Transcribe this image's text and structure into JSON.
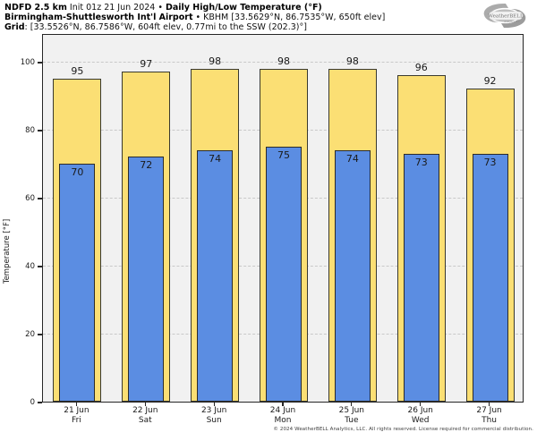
{
  "header": {
    "line1_b1": "NDFD 2.5 km",
    "line1_r1": " Init 01z 21 Jun 2024 • ",
    "line1_b2": "Daily High/Low Temperature (°F)",
    "line2_b1": "Birmingham-Shuttlesworth Int'l Airport",
    "line2_r1": " • KBHM [33.5629°N, 86.7535°W, 650ft elev]",
    "line3_b1": "Grid",
    "line3_r1": ": [33.5526°N, 86.7586°W, 604ft elev, 0.77mi to the SSW (202.3)°]"
  },
  "logo": {
    "brand": "WeatherBELL",
    "sub": "Analytics LLC"
  },
  "chart_data": {
    "type": "bar",
    "title": "Daily High/Low Temperature (°F)",
    "categories": [
      "21 Jun",
      "22 Jun",
      "23 Jun",
      "24 Jun",
      "25 Jun",
      "26 Jun",
      "27 Jun"
    ],
    "weekdays": [
      "Fri",
      "Sat",
      "Sun",
      "Mon",
      "Tue",
      "Wed",
      "Thu"
    ],
    "series": [
      {
        "name": "High",
        "color": "#FBDF74",
        "values": [
          95,
          97,
          98,
          98,
          98,
          96,
          92
        ]
      },
      {
        "name": "Low",
        "color": "#5B8DE2",
        "values": [
          70,
          72,
          74,
          75,
          74,
          73,
          73
        ]
      }
    ],
    "xlabel": "",
    "ylabel": "Temperature [°F]",
    "yticks": [
      0,
      20,
      40,
      60,
      80,
      100
    ],
    "ylim": [
      0,
      108.4
    ],
    "grid": "horizontal-dashed",
    "legend": "none"
  },
  "footer": {
    "copyright": "© 2024 WeatherBELL Analytics, LLC. All rights reserved. License required for commercial distribution."
  }
}
